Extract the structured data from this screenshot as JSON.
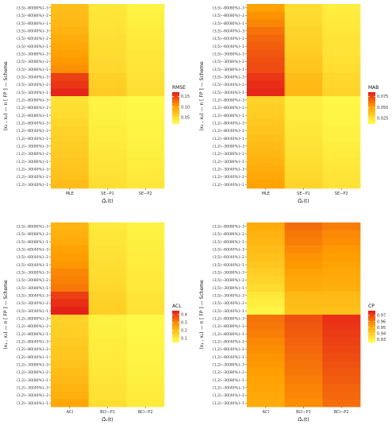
{
  "rows": [
    "(3,5)--80[80%]--3",
    "(3,5)--80[80%]--2",
    "(3,5)--80[80%]--1",
    "(3,5)--60[40%]--3",
    "(3,5)--60[40%]--2",
    "(3,5)--60[40%]--1",
    "(3,5)--30[80%]--3",
    "(3,5)--30[80%]--2",
    "(3,5)--30[80%]--1",
    "(3,5)--30[40%]--3",
    "(3,5)--30[40%]--2",
    "(3,5)--30[40%]--1",
    "(1,2)--80[80%]--3",
    "(1,2)--80[80%]--2",
    "(1,2)--80[80%]--1",
    "(1,2)--80[40%]--3",
    "(1,2)--80[40%]--2",
    "(1,2)--80[40%]--1",
    "(1,2)--30[80%]--3",
    "(1,2)--30[80%]--2",
    "(1,2)--30[80%]--1",
    "(1,2)--30[40%]--3",
    "(1,2)--30[40%]--2",
    "(1,2)--30[40%]--1"
  ],
  "ylabel": "(x₁ , x₂) — n [ FP ] — Scheme",
  "xlabel": "Ω̂ₓ(t)",
  "chart_data": [
    {
      "type": "heatmap",
      "legend_title": "RMSE",
      "legend_ticks": [
        0.05,
        0.1,
        0.15
      ],
      "legend_tick_labels": [
        "0.05",
        "0.10",
        "0.15"
      ],
      "range": [
        0.02,
        0.17
      ],
      "columns": [
        "MLE",
        "SE−P1",
        "SE−P2"
      ],
      "values": [
        [
          0.075,
          0.04,
          0.03
        ],
        [
          0.078,
          0.042,
          0.032
        ],
        [
          0.08,
          0.043,
          0.033
        ],
        [
          0.085,
          0.045,
          0.035
        ],
        [
          0.09,
          0.047,
          0.037
        ],
        [
          0.095,
          0.049,
          0.038
        ],
        [
          0.1,
          0.05,
          0.04
        ],
        [
          0.105,
          0.052,
          0.041
        ],
        [
          0.11,
          0.054,
          0.042
        ],
        [
          0.15,
          0.06,
          0.045
        ],
        [
          0.155,
          0.062,
          0.046
        ],
        [
          0.165,
          0.065,
          0.048
        ],
        [
          0.045,
          0.03,
          0.025
        ],
        [
          0.048,
          0.031,
          0.026
        ],
        [
          0.05,
          0.032,
          0.027
        ],
        [
          0.055,
          0.034,
          0.029
        ],
        [
          0.058,
          0.035,
          0.03
        ],
        [
          0.06,
          0.036,
          0.031
        ],
        [
          0.062,
          0.038,
          0.032
        ],
        [
          0.065,
          0.04,
          0.034
        ],
        [
          0.068,
          0.042,
          0.035
        ],
        [
          0.07,
          0.044,
          0.036
        ],
        [
          0.073,
          0.046,
          0.038
        ],
        [
          0.078,
          0.048,
          0.04
        ]
      ]
    },
    {
      "type": "heatmap",
      "legend_title": "MAB",
      "legend_ticks": [
        0.025,
        0.05,
        0.075
      ],
      "legend_tick_labels": [
        "0.025",
        "0.050",
        "0.075"
      ],
      "range": [
        0.012,
        0.085
      ],
      "columns": [
        "MLE",
        "SE−P1",
        "SE−P2"
      ],
      "values": [
        [
          0.05,
          0.026,
          0.019
        ],
        [
          0.055,
          0.027,
          0.02
        ],
        [
          0.058,
          0.028,
          0.021
        ],
        [
          0.063,
          0.03,
          0.022
        ],
        [
          0.066,
          0.031,
          0.023
        ],
        [
          0.068,
          0.032,
          0.023
        ],
        [
          0.07,
          0.034,
          0.024
        ],
        [
          0.072,
          0.035,
          0.025
        ],
        [
          0.073,
          0.036,
          0.026
        ],
        [
          0.078,
          0.04,
          0.028
        ],
        [
          0.08,
          0.041,
          0.029
        ],
        [
          0.082,
          0.042,
          0.03
        ],
        [
          0.03,
          0.019,
          0.015
        ],
        [
          0.032,
          0.02,
          0.016
        ],
        [
          0.033,
          0.02,
          0.016
        ],
        [
          0.035,
          0.021,
          0.017
        ],
        [
          0.036,
          0.022,
          0.018
        ],
        [
          0.038,
          0.023,
          0.018
        ],
        [
          0.04,
          0.024,
          0.019
        ],
        [
          0.042,
          0.025,
          0.02
        ],
        [
          0.044,
          0.026,
          0.021
        ],
        [
          0.046,
          0.027,
          0.022
        ],
        [
          0.048,
          0.028,
          0.023
        ],
        [
          0.05,
          0.03,
          0.024
        ]
      ]
    },
    {
      "type": "heatmap",
      "legend_title": "ACL",
      "legend_ticks": [
        0.1,
        0.2,
        0.3,
        0.4
      ],
      "legend_tick_labels": [
        "0.1",
        "0.2",
        "0.3",
        "0.4"
      ],
      "range": [
        0.05,
        0.45
      ],
      "columns": [
        "ACI",
        "BCI−P1",
        "BCI−P2"
      ],
      "values": [
        [
          0.22,
          0.1,
          0.08
        ],
        [
          0.23,
          0.105,
          0.082
        ],
        [
          0.24,
          0.11,
          0.085
        ],
        [
          0.26,
          0.115,
          0.088
        ],
        [
          0.27,
          0.12,
          0.09
        ],
        [
          0.28,
          0.125,
          0.092
        ],
        [
          0.3,
          0.13,
          0.095
        ],
        [
          0.31,
          0.135,
          0.098
        ],
        [
          0.32,
          0.14,
          0.1
        ],
        [
          0.4,
          0.15,
          0.11
        ],
        [
          0.42,
          0.155,
          0.112
        ],
        [
          0.44,
          0.16,
          0.115
        ],
        [
          0.15,
          0.08,
          0.065
        ],
        [
          0.155,
          0.082,
          0.067
        ],
        [
          0.16,
          0.085,
          0.068
        ],
        [
          0.17,
          0.09,
          0.072
        ],
        [
          0.175,
          0.092,
          0.074
        ],
        [
          0.18,
          0.095,
          0.075
        ],
        [
          0.19,
          0.1,
          0.08
        ],
        [
          0.2,
          0.105,
          0.082
        ],
        [
          0.21,
          0.11,
          0.085
        ],
        [
          0.22,
          0.115,
          0.09
        ],
        [
          0.23,
          0.12,
          0.092
        ],
        [
          0.25,
          0.125,
          0.095
        ]
      ]
    },
    {
      "type": "heatmap",
      "legend_title": "CP",
      "legend_ticks": [
        0.93,
        0.94,
        0.95,
        0.96,
        0.97
      ],
      "legend_tick_labels": [
        "0.93",
        "0.94",
        "0.95",
        "0.96",
        "0.97"
      ],
      "range": [
        0.925,
        0.978
      ],
      "columns": [
        "ACI",
        "BCI−P1",
        "BCI−P2"
      ],
      "values": [
        [
          0.95,
          0.963,
          0.96
        ],
        [
          0.948,
          0.961,
          0.958
        ],
        [
          0.947,
          0.96,
          0.957
        ],
        [
          0.945,
          0.958,
          0.955
        ],
        [
          0.944,
          0.956,
          0.954
        ],
        [
          0.942,
          0.955,
          0.953
        ],
        [
          0.94,
          0.953,
          0.951
        ],
        [
          0.938,
          0.951,
          0.95
        ],
        [
          0.936,
          0.95,
          0.949
        ],
        [
          0.932,
          0.946,
          0.946
        ],
        [
          0.93,
          0.945,
          0.945
        ],
        [
          0.928,
          0.944,
          0.944
        ],
        [
          0.962,
          0.968,
          0.974
        ],
        [
          0.961,
          0.967,
          0.973
        ],
        [
          0.96,
          0.966,
          0.972
        ],
        [
          0.958,
          0.965,
          0.971
        ],
        [
          0.957,
          0.964,
          0.97
        ],
        [
          0.956,
          0.963,
          0.969
        ],
        [
          0.955,
          0.962,
          0.968
        ],
        [
          0.954,
          0.961,
          0.967
        ],
        [
          0.953,
          0.96,
          0.966
        ],
        [
          0.952,
          0.959,
          0.965
        ],
        [
          0.951,
          0.958,
          0.964
        ],
        [
          0.95,
          0.957,
          0.963
        ]
      ]
    }
  ]
}
